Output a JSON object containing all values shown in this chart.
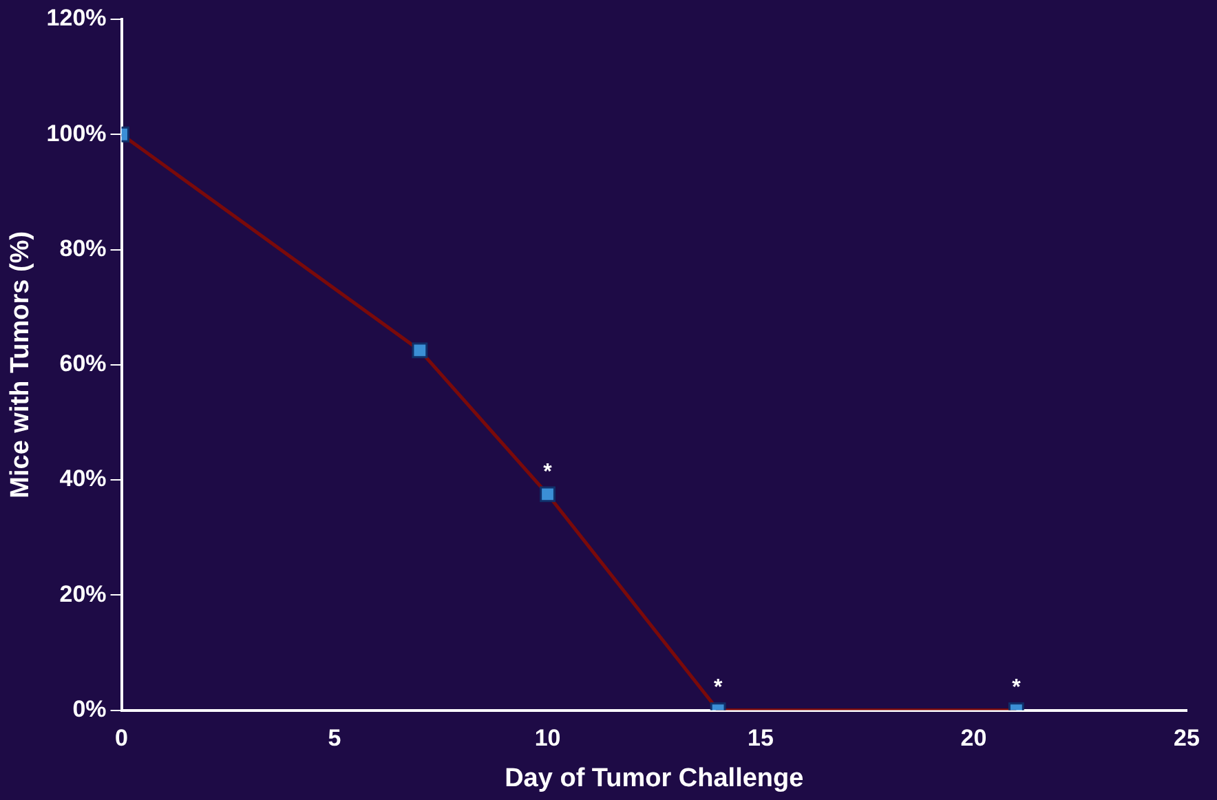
{
  "chart_data": {
    "type": "line",
    "xlabel": "Day of Tumor Challenge",
    "ylabel": "Mice with Tumors (%)",
    "x": [
      0,
      7,
      10,
      14,
      21
    ],
    "series": [
      {
        "color": "#7a0a0a",
        "values": [
          100,
          62.5,
          37.5,
          0,
          0
        ]
      }
    ],
    "xlim": [
      0,
      25
    ],
    "xticks": [
      0,
      5,
      10,
      15,
      20,
      25
    ],
    "ylim": [
      0,
      120
    ],
    "yticks": [
      {
        "value": 0,
        "label": "0%"
      },
      {
        "value": 20,
        "label": "20%"
      },
      {
        "value": 40,
        "label": "40%"
      },
      {
        "value": 60,
        "label": "60%"
      },
      {
        "value": 80,
        "label": "80%"
      },
      {
        "value": 100,
        "label": "100%"
      },
      {
        "value": 120,
        "label": "120%"
      }
    ],
    "annotations": [
      {
        "text": "*",
        "x": 10,
        "y": 37.5
      },
      {
        "text": "*",
        "x": 14,
        "y": 0
      },
      {
        "text": "*",
        "x": 21,
        "y": 0
      }
    ],
    "grid": false,
    "legend": false,
    "marker": "square",
    "line_style": "solid"
  }
}
